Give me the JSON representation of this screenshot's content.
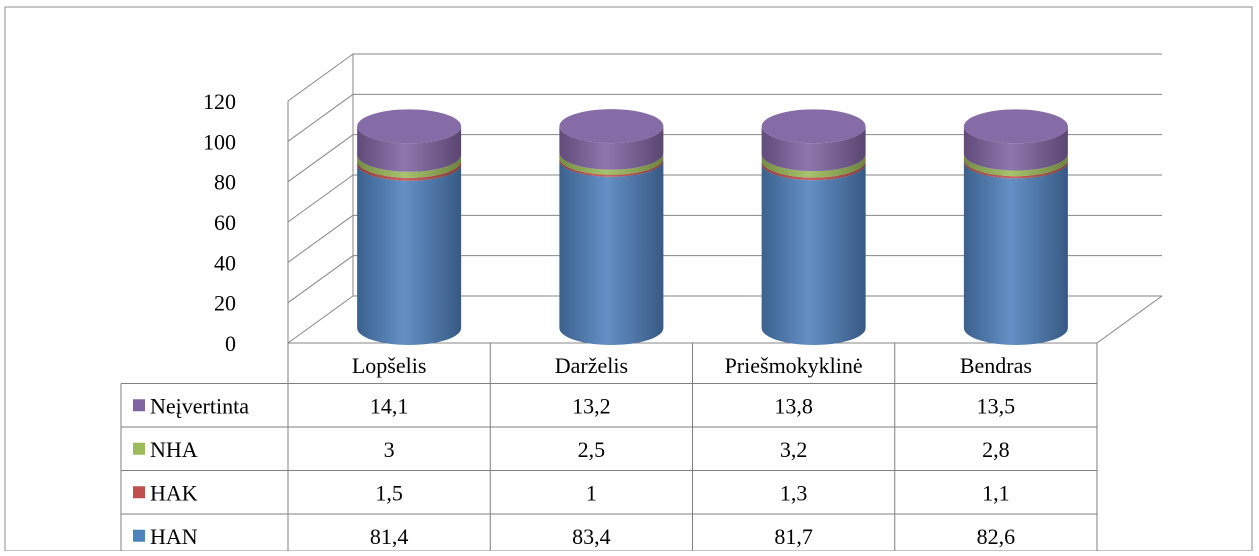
{
  "chart_data": {
    "type": "bar",
    "stacked": true,
    "style": "3d-cylinder",
    "categories": [
      "Lopšelis",
      "Darželis",
      "Priešmokyklinė",
      "Bendras"
    ],
    "series": [
      {
        "name": "HAN",
        "values": [
          81.4,
          83.4,
          81.7,
          82.6
        ],
        "color": "#4F81BD",
        "values_text": [
          "81,4",
          "83,4",
          "81,7",
          "82,6"
        ]
      },
      {
        "name": "HAK",
        "values": [
          1.5,
          1,
          1.3,
          1.1
        ],
        "color": "#C0504D",
        "values_text": [
          "1,5",
          "1",
          "1,3",
          "1,1"
        ]
      },
      {
        "name": "NHA",
        "values": [
          3,
          2.5,
          3.2,
          2.8
        ],
        "color": "#9BBB59",
        "values_text": [
          "3",
          "2,5",
          "3,2",
          "2,8"
        ]
      },
      {
        "name": "Neįvertinta",
        "values": [
          14.1,
          13.2,
          13.8,
          13.5
        ],
        "color": "#8064A2",
        "values_text": [
          "14,1",
          "13,2",
          "13,8",
          "13,5"
        ]
      }
    ],
    "ylim": [
      0,
      120
    ],
    "yticks": [
      "0",
      "20",
      "40",
      "60",
      "80",
      "100",
      "120"
    ],
    "grid": true,
    "legend": "data-table",
    "table_row_order": [
      "Neįvertinta",
      "NHA",
      "HAK",
      "HAN"
    ]
  }
}
